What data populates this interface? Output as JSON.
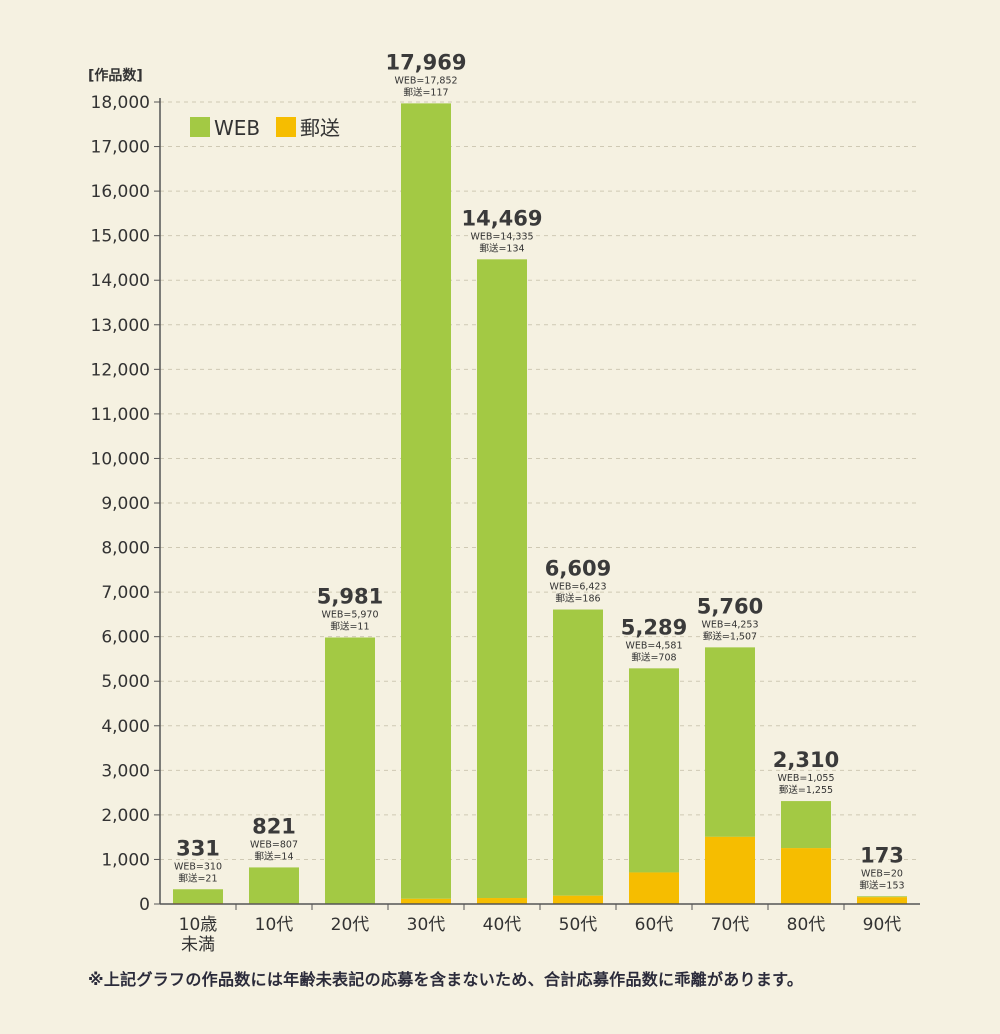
{
  "chart_data": {
    "type": "bar",
    "stacked": true,
    "title": "",
    "ylabel": "[作品数]",
    "xlabel": "",
    "ylim": [
      0,
      18000
    ],
    "yticks": [
      0,
      1000,
      2000,
      3000,
      4000,
      5000,
      6000,
      7000,
      8000,
      9000,
      10000,
      11000,
      12000,
      13000,
      14000,
      15000,
      16000,
      17000,
      18000
    ],
    "ytick_labels": [
      "0",
      "1,000",
      "2,000",
      "3,000",
      "4,000",
      "5,000",
      "6,000",
      "7,000",
      "8,000",
      "9,000",
      "10,000",
      "11,000",
      "12,000",
      "13,000",
      "14,000",
      "15,000",
      "16,000",
      "17,000",
      "18,000"
    ],
    "grid": true,
    "legend_position": "top-left",
    "categories": [
      "10歳\n未満",
      "10代",
      "20代",
      "30代",
      "40代",
      "50代",
      "60代",
      "70代",
      "80代",
      "90代"
    ],
    "series": [
      {
        "name": "WEB",
        "color": "#a3c944",
        "values": [
          310,
          807,
          5970,
          17852,
          14335,
          6423,
          4581,
          4253,
          1055,
          20
        ]
      },
      {
        "name": "郵送",
        "color": "#f6bd00",
        "values": [
          21,
          14,
          11,
          117,
          134,
          186,
          708,
          1507,
          1255,
          153
        ]
      }
    ],
    "totals": [
      331,
      821,
      5981,
      17969,
      14469,
      6609,
      5289,
      5760,
      2310,
      173
    ],
    "total_labels": [
      "331",
      "821",
      "5,981",
      "17,969",
      "14,469",
      "6,609",
      "5,289",
      "5,760",
      "2,310",
      "173"
    ],
    "web_labels": [
      "WEB=310",
      "WEB=807",
      "WEB=5,970",
      "WEB=17,852",
      "WEB=14,335",
      "WEB=6,423",
      "WEB=4,581",
      "WEB=4,253",
      "WEB=1,055",
      "WEB=20"
    ],
    "mail_labels": [
      "郵送=21",
      "郵送=14",
      "郵送=11",
      "郵送=117",
      "郵送=134",
      "郵送=186",
      "郵送=708",
      "郵送=1,507",
      "郵送=1,255",
      "郵送=153"
    ]
  },
  "footnote": "※上記グラフの作品数には年齢未表記の応募を含まないため、合計応募作品数に乖離があります。"
}
